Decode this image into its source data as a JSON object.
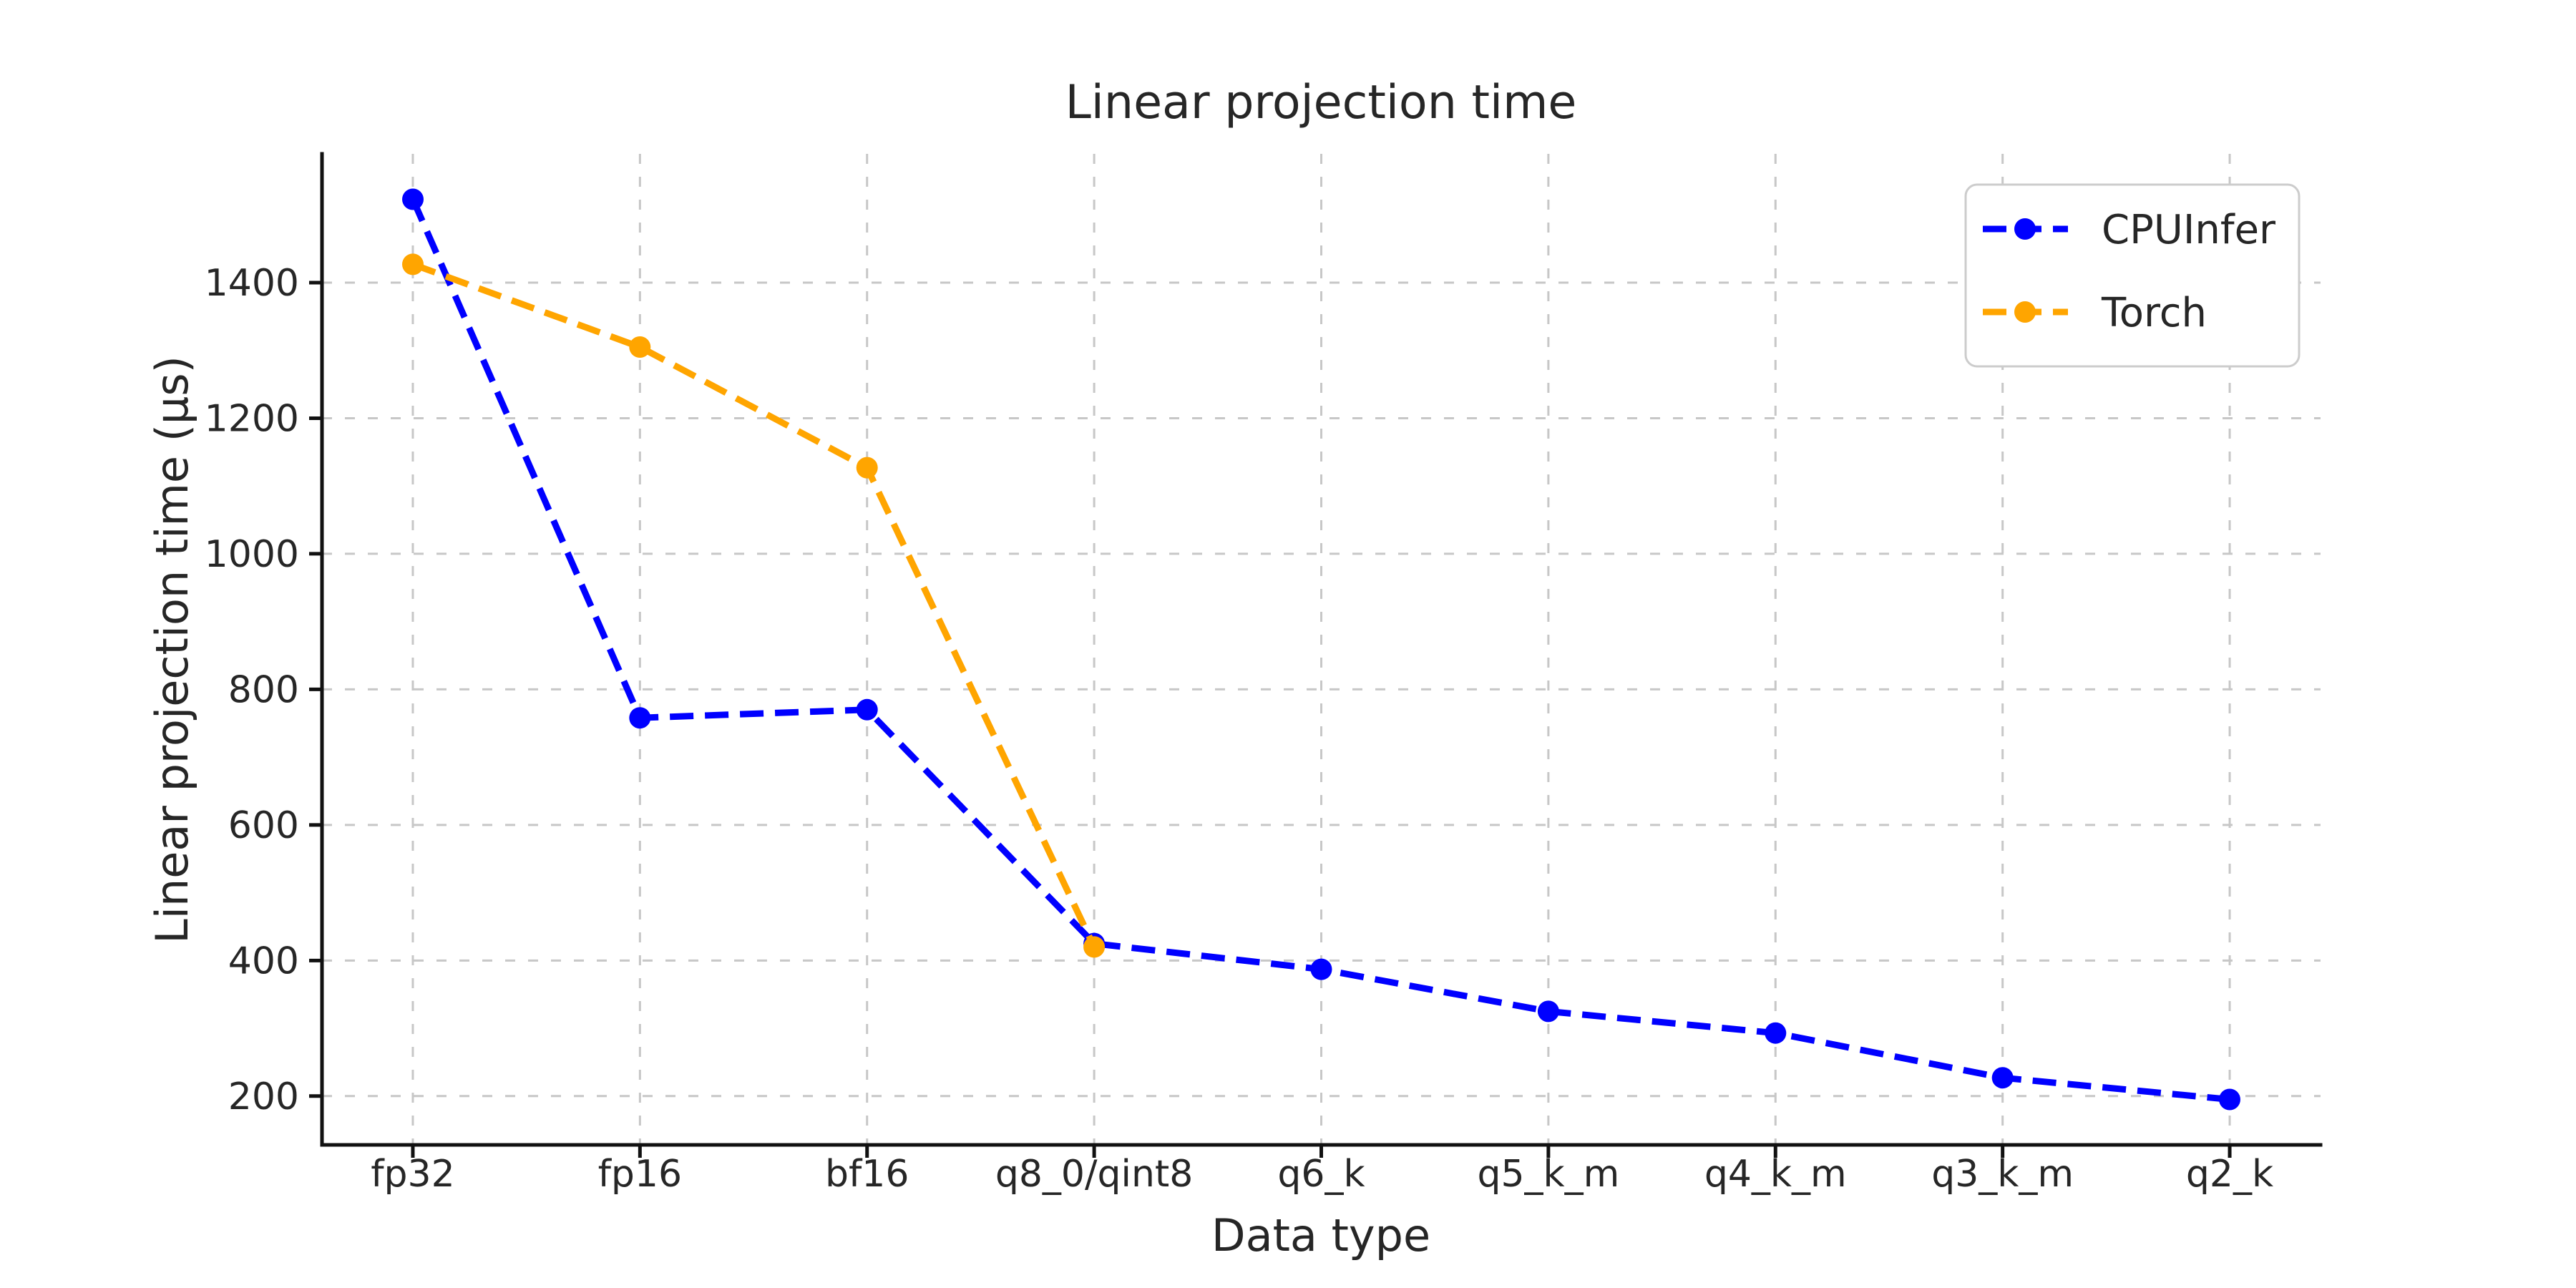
{
  "chart_data": {
    "type": "line",
    "title": "Linear projection time",
    "xlabel": "Data type",
    "ylabel": "Linear projection time (µs)",
    "categories": [
      "fp32",
      "fp16",
      "bf16",
      "q8_0/qint8",
      "q6_k",
      "q5_k_m",
      "q4_k_m",
      "q3_k_m",
      "q2_k"
    ],
    "series": [
      {
        "name": "CPUInfer",
        "color": "#0000ff",
        "linestyle": "dashed",
        "marker": "circle",
        "values": [
          1523,
          758,
          770,
          425,
          387,
          325,
          293,
          227,
          195
        ]
      },
      {
        "name": "Torch",
        "color": "#ffa500",
        "linestyle": "dashed",
        "marker": "circle",
        "values": [
          1427,
          1305,
          1127,
          420,
          null,
          null,
          null,
          null,
          null
        ]
      }
    ],
    "yticks": [
      200,
      400,
      600,
      800,
      1000,
      1200,
      1400
    ],
    "ylim": [
      128,
      1590
    ],
    "xlim": [
      -0.4,
      8.4
    ],
    "grid": true,
    "legend_position": "upper right",
    "colors": {
      "grid": "#c7c7c7",
      "spine": "#111111",
      "text": "#262626",
      "background": "#ffffff"
    }
  }
}
